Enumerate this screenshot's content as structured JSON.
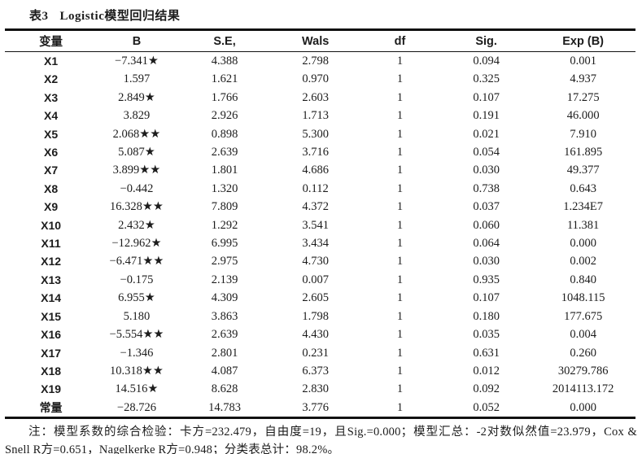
{
  "title": {
    "prefix": "表3",
    "text": "Logistic模型回归结果"
  },
  "table": {
    "headers": [
      "变量",
      "B",
      "S.E,",
      "Wals",
      "df",
      "Sig.",
      "Exp (B)"
    ],
    "col_widths_pct": [
      14.6,
      12.6,
      15.3,
      13.5,
      13.3,
      14.1,
      16.6
    ],
    "rows": [
      [
        "X1",
        "−7.341★",
        "4.388",
        "2.798",
        "1",
        "0.094",
        "0.001"
      ],
      [
        "X2",
        "1.597",
        "1.621",
        "0.970",
        "1",
        "0.325",
        "4.937"
      ],
      [
        "X3",
        "2.849★",
        "1.766",
        "2.603",
        "1",
        "0.107",
        "17.275"
      ],
      [
        "X4",
        "3.829",
        "2.926",
        "1.713",
        "1",
        "0.191",
        "46.000"
      ],
      [
        "X5",
        "2.068★★",
        "0.898",
        "5.300",
        "1",
        "0.021",
        "7.910"
      ],
      [
        "X6",
        "5.087★",
        "2.639",
        "3.716",
        "1",
        "0.054",
        "161.895"
      ],
      [
        "X7",
        "3.899★★",
        "1.801",
        "4.686",
        "1",
        "0.030",
        "49.377"
      ],
      [
        "X8",
        "−0.442",
        "1.320",
        "0.112",
        "1",
        "0.738",
        "0.643"
      ],
      [
        "X9",
        "16.328★★",
        "7.809",
        "4.372",
        "1",
        "0.037",
        "1.234E7"
      ],
      [
        "X10",
        "2.432★",
        "1.292",
        "3.541",
        "1",
        "0.060",
        "11.381"
      ],
      [
        "X11",
        "−12.962★",
        "6.995",
        "3.434",
        "1",
        "0.064",
        "0.000"
      ],
      [
        "X12",
        "−6.471★★",
        "2.975",
        "4.730",
        "1",
        "0.030",
        "0.002"
      ],
      [
        "X13",
        "−0.175",
        "2.139",
        "0.007",
        "1",
        "0.935",
        "0.840"
      ],
      [
        "X14",
        "6.955★",
        "4.309",
        "2.605",
        "1",
        "0.107",
        "1048.115"
      ],
      [
        "X15",
        "5.180",
        "3.863",
        "1.798",
        "1",
        "0.180",
        "177.675"
      ],
      [
        "X16",
        "−5.554★★",
        "2.639",
        "4.430",
        "1",
        "0.035",
        "0.004"
      ],
      [
        "X17",
        "−1.346",
        "2.801",
        "0.231",
        "1",
        "0.631",
        "0.260"
      ],
      [
        "X18",
        "10.318★★",
        "4.087",
        "6.373",
        "1",
        "0.012",
        "30279.786"
      ],
      [
        "X19",
        "14.516★",
        "8.628",
        "2.830",
        "1",
        "0.092",
        "2014113.172"
      ],
      [
        "常量",
        "−28.726",
        "14.783",
        "3.776",
        "1",
        "0.052",
        "0.000"
      ]
    ]
  },
  "footnote": "注：模型系数的综合检验：卡方=232.479，自由度=19，且Sig.=0.000；模型汇总：-2对数似然值=23.979，Cox & Snell R方=0.651，Nagelkerke R方=0.948；分类表总计：98.2%。"
}
